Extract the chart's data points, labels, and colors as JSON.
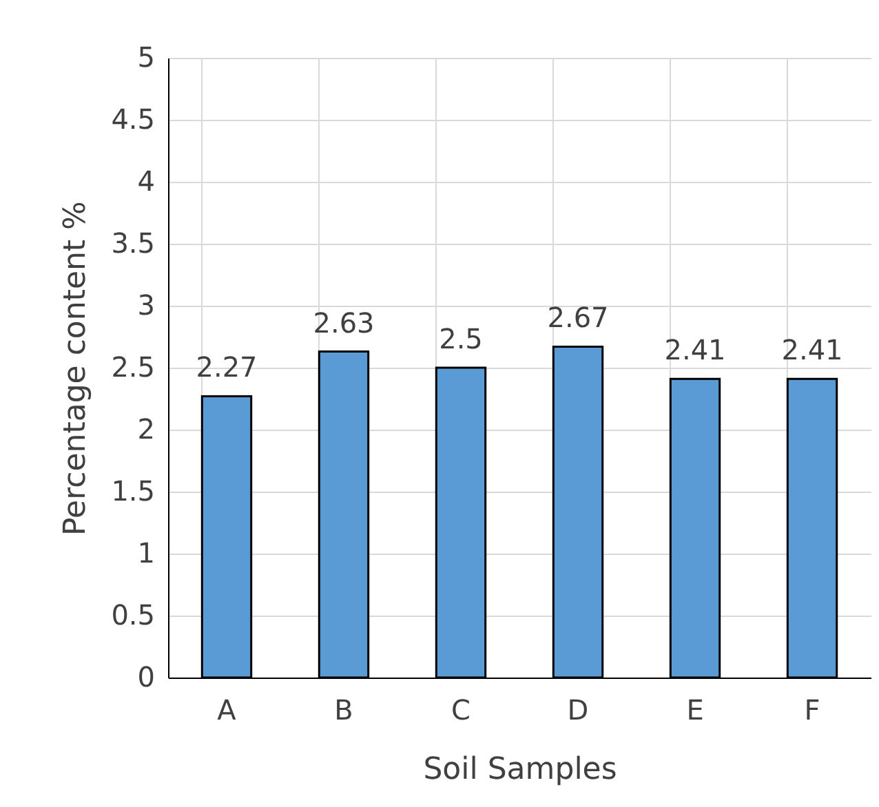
{
  "chart_data": {
    "type": "bar",
    "xlabel": "Soil Samples",
    "ylabel": "Percentage content %",
    "categories": [
      "A",
      "B",
      "C",
      "D",
      "E",
      "F"
    ],
    "values": [
      2.27,
      2.63,
      2.5,
      2.67,
      2.41,
      2.41
    ],
    "color": "#5b9bd5",
    "ylim": [
      0,
      5
    ],
    "yticks": [
      0,
      0.5,
      1,
      1.5,
      2,
      2.5,
      3,
      3.5,
      4,
      4.5,
      5
    ],
    "grid": true,
    "data_labels": true
  }
}
